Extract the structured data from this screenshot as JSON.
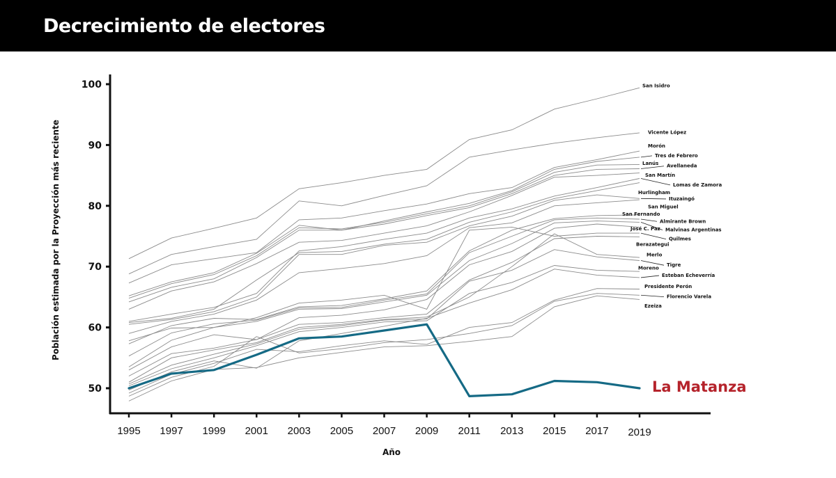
{
  "header": {
    "title": "Decrecimiento de electores"
  },
  "colors": {
    "highlight": "#156a85",
    "highlight_label": "#b5232b",
    "series": "#8a8a8a",
    "axis": "#111111"
  },
  "chart_data": {
    "type": "line",
    "title": "Decrecimiento de electores",
    "xlabel": "Año",
    "ylabel": "Población estimada por la Proyección más reciente",
    "ylim": [
      46,
      102
    ],
    "yticks": [
      50,
      60,
      70,
      80,
      90,
      100
    ],
    "x": [
      1995,
      1997,
      1999,
      2001,
      2003,
      2005,
      2007,
      2009,
      2011,
      2013,
      2015,
      2017,
      2019
    ],
    "grid": false,
    "legend": "end-labels-right",
    "highlight": {
      "name": "La Matanza",
      "values": [
        50.0,
        52.4,
        53.0,
        55.5,
        58.2,
        58.5,
        59.5,
        60.5,
        48.7,
        49.0,
        51.2,
        51.0,
        50.0
      ]
    },
    "series": [
      {
        "name": "San Isidro",
        "values": [
          71.3,
          74.7,
          76.3,
          78.0,
          82.8,
          83.8,
          85.0,
          86.0,
          90.9,
          92.5,
          95.9,
          97.6,
          99.4
        ]
      },
      {
        "name": "Vicente López",
        "values": [
          68.8,
          72.0,
          73.3,
          74.5,
          80.8,
          80.0,
          81.7,
          83.3,
          88.0,
          89.2,
          90.3,
          91.2,
          92.0
        ]
      },
      {
        "name": "Morón",
        "values": [
          67.3,
          70.3,
          71.3,
          72.3,
          77.7,
          78.0,
          79.2,
          80.3,
          82.0,
          83.0,
          86.3,
          87.6,
          89.0
        ]
      },
      {
        "name": "Tres de Febrero",
        "values": [
          65.2,
          67.5,
          69.0,
          72.2,
          76.8,
          76.0,
          77.5,
          79.0,
          80.4,
          82.5,
          86.0,
          87.3,
          88.0
        ]
      },
      {
        "name": "Lanús",
        "values": [
          64.8,
          67.2,
          68.7,
          71.8,
          76.4,
          76.2,
          77.3,
          78.7,
          80.0,
          82.3,
          85.5,
          86.7,
          86.8
        ]
      },
      {
        "name": "Avellaneda",
        "values": [
          64.2,
          66.6,
          68.0,
          71.5,
          76.0,
          76.0,
          77.0,
          78.4,
          79.7,
          82.0,
          85.0,
          86.0,
          86.1
        ]
      },
      {
        "name": "San Martín",
        "values": [
          63.0,
          66.0,
          67.5,
          70.5,
          74.0,
          74.3,
          75.5,
          76.7,
          79.0,
          81.7,
          84.7,
          85.0,
          85.4
        ]
      },
      {
        "name": "Lomas de Zamora",
        "values": [
          61.0,
          62.2,
          63.3,
          65.6,
          72.6,
          73.3,
          74.5,
          75.5,
          78.0,
          79.5,
          81.6,
          83.0,
          84.5
        ]
      },
      {
        "name": "Hurlingham",
        "values": [
          60.8,
          61.5,
          63.0,
          67.8,
          72.3,
          72.5,
          73.7,
          74.5,
          77.3,
          79.0,
          81.2,
          82.5,
          83.8
        ]
      },
      {
        "name": "Ituzaingó",
        "values": [
          60.5,
          61.3,
          62.6,
          65.0,
          72.0,
          72.0,
          73.5,
          74.0,
          76.7,
          78.3,
          80.9,
          81.8,
          81.2
        ]
      },
      {
        "name": "San Miguel",
        "values": [
          59.0,
          61.0,
          62.2,
          64.5,
          69.0,
          69.7,
          70.5,
          71.8,
          76.4,
          77.2,
          80.0,
          80.5,
          81.0
        ]
      },
      {
        "name": "San Fernando",
        "values": [
          57.3,
          60.3,
          61.5,
          61.3,
          63.4,
          63.6,
          64.7,
          66.0,
          72.6,
          76.0,
          77.9,
          78.4,
          78.5
        ]
      },
      {
        "name": "Almirante Brown",
        "values": [
          55.3,
          59.1,
          60.6,
          61.2,
          63.2,
          63.3,
          64.5,
          65.5,
          72.3,
          75.0,
          77.7,
          78.0,
          77.8
        ]
      },
      {
        "name": "Malvinas Argentinas",
        "values": [
          53.5,
          57.9,
          60.0,
          61.0,
          63.0,
          63.1,
          64.2,
          65.3,
          71.0,
          73.8,
          77.2,
          77.5,
          77.3
        ]
      },
      {
        "name": "José C. Paz",
        "values": [
          53.0,
          56.8,
          58.8,
          58.0,
          61.6,
          62.0,
          62.9,
          64.6,
          70.3,
          72.5,
          76.3,
          77.0,
          76.5
        ]
      },
      {
        "name": "Quilmes",
        "values": [
          57.8,
          59.9,
          60.0,
          61.6,
          64.0,
          64.5,
          65.3,
          63.0,
          76.0,
          76.5,
          75.0,
          75.5,
          75.5
        ]
      },
      {
        "name": "Berazategui",
        "values": [
          52.0,
          55.7,
          56.6,
          58.0,
          60.5,
          60.8,
          61.6,
          62.2,
          67.8,
          70.7,
          74.6,
          75.0,
          74.9
        ]
      },
      {
        "name": "Merlo",
        "values": [
          51.0,
          55.0,
          56.3,
          57.5,
          60.0,
          60.5,
          61.3,
          61.7,
          65.0,
          70.0,
          75.4,
          72.0,
          71.5
        ]
      },
      {
        "name": "Tigre",
        "values": [
          50.7,
          53.8,
          55.6,
          57.3,
          59.7,
          60.3,
          61.2,
          61.4,
          67.6,
          69.4,
          72.8,
          71.6,
          71.0
        ]
      },
      {
        "name": "Moreno",
        "values": [
          50.4,
          53.2,
          55.0,
          57.0,
          59.3,
          60.0,
          60.9,
          61.1,
          65.6,
          67.4,
          70.2,
          69.4,
          69.2
        ]
      },
      {
        "name": "Esteban Echeverría",
        "values": [
          49.7,
          52.7,
          54.5,
          53.3,
          57.8,
          59.0,
          60.2,
          61.5,
          64.0,
          66.2,
          69.6,
          68.6,
          68.2
        ]
      },
      {
        "name": "Presidente Perón",
        "values": [
          49.2,
          52.3,
          54.1,
          56.4,
          56.0,
          57.0,
          57.8,
          57.2,
          60.0,
          60.8,
          64.5,
          66.4,
          66.3
        ]
      },
      {
        "name": "Florencio Varela",
        "values": [
          48.7,
          51.8,
          53.6,
          58.5,
          55.8,
          56.5,
          57.5,
          58.0,
          59.0,
          60.3,
          64.3,
          65.6,
          65.3
        ]
      },
      {
        "name": "Ezeiza",
        "values": [
          47.9,
          51.2,
          53.1,
          53.4,
          55.0,
          55.9,
          56.8,
          57.0,
          57.7,
          58.5,
          63.4,
          65.2,
          64.6
        ]
      }
    ],
    "end_labels": [
      {
        "name": "San Isidro",
        "label_value": 99.5
      },
      {
        "name": "Vicente López",
        "label_value": 91.8
      },
      {
        "name": "Morón",
        "label_value": 89.6
      },
      {
        "name": "Tres de Febrero",
        "label_value": 88.0
      },
      {
        "name": "Lanús",
        "label_value": 86.7
      },
      {
        "name": "Avellaneda",
        "label_value": 86.3
      },
      {
        "name": "San Martín",
        "label_value": 84.8
      },
      {
        "name": "Lomas de Zamora",
        "label_value": 83.2
      },
      {
        "name": "Hurlingham",
        "label_value": 81.9
      },
      {
        "name": "Ituzaingó",
        "label_value": 80.9
      },
      {
        "name": "San Miguel",
        "label_value": 79.6
      },
      {
        "name": "San Fernando",
        "label_value": 78.4
      },
      {
        "name": "Almirante Brown",
        "label_value": 77.2
      },
      {
        "name": "Malvinas Argentinas",
        "label_value": 75.8
      },
      {
        "name": "José C. Paz",
        "label_value": 76.0
      },
      {
        "name": "Quilmes",
        "label_value": 74.3
      },
      {
        "name": "Berazategui",
        "label_value": 73.4
      },
      {
        "name": "Merlo",
        "label_value": 71.7
      },
      {
        "name": "Tigre",
        "label_value": 70.0
      },
      {
        "name": "Moreno",
        "label_value": 69.5
      },
      {
        "name": "Esteban Echeverría",
        "label_value": 68.3
      },
      {
        "name": "Presidente Perón",
        "label_value": 66.5
      },
      {
        "name": "Florencio Varela",
        "label_value": 64.8
      },
      {
        "name": "Ezeiza",
        "label_value": 63.3
      }
    ]
  }
}
